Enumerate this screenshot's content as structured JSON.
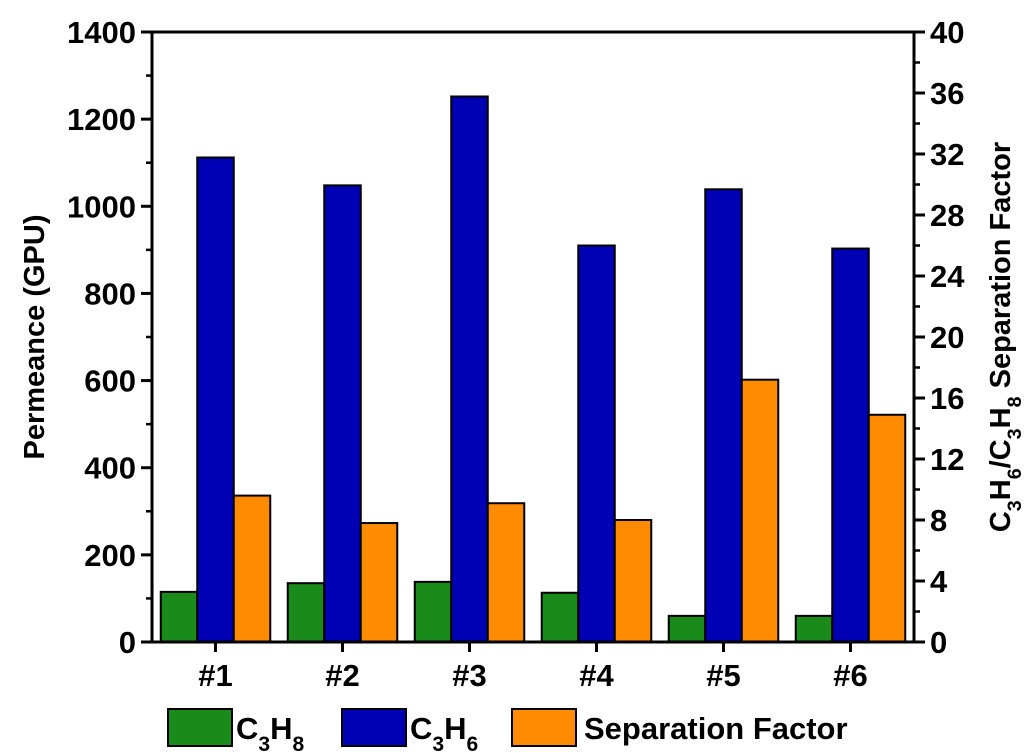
{
  "colors": {
    "c3h8": "#1a8a1a",
    "c3h6": "#0000b4",
    "separation_factor": "#ff8c00",
    "axis": "#000000"
  },
  "chart_data": {
    "type": "bar",
    "categories": [
      "#1",
      "#2",
      "#3",
      "#4",
      "#5",
      "#6"
    ],
    "left_axis": {
      "label": "Permeance (GPU)",
      "ylim": [
        0,
        1400
      ],
      "ticks": [
        "0",
        "200",
        "400",
        "600",
        "800",
        "1000",
        "1200",
        "1400"
      ]
    },
    "right_axis": {
      "label_parts": [
        {
          "t": "C",
          "sub": false
        },
        {
          "t": "3",
          "sub": true
        },
        {
          "t": "H",
          "sub": false
        },
        {
          "t": "6",
          "sub": true
        },
        {
          "t": "/C",
          "sub": false
        },
        {
          "t": "3",
          "sub": true
        },
        {
          "t": "H",
          "sub": false
        },
        {
          "t": "8",
          "sub": true
        },
        {
          "t": " Separation Factor",
          "sub": false
        }
      ],
      "ylim": [
        0,
        40
      ],
      "ticks": [
        "0",
        "4",
        "8",
        "12",
        "16",
        "20",
        "24",
        "28",
        "32",
        "36",
        "40"
      ]
    },
    "series": [
      {
        "key": "c3h8",
        "axis": "left",
        "legend_parts": [
          {
            "t": "C",
            "sub": false
          },
          {
            "t": "3",
            "sub": true
          },
          {
            "t": "H",
            "sub": false
          },
          {
            "t": "8",
            "sub": true
          }
        ],
        "values": [
          115,
          135,
          138,
          113,
          60,
          60
        ]
      },
      {
        "key": "c3h6",
        "axis": "left",
        "legend_parts": [
          {
            "t": "C",
            "sub": false
          },
          {
            "t": "3",
            "sub": true
          },
          {
            "t": "H",
            "sub": false
          },
          {
            "t": "6",
            "sub": true
          }
        ],
        "values": [
          1112,
          1048,
          1252,
          910,
          1039,
          903
        ]
      },
      {
        "key": "separation_factor",
        "axis": "right",
        "legend_parts": [
          {
            "t": "Separation Factor",
            "sub": false
          }
        ],
        "values": [
          9.6,
          7.8,
          9.1,
          8.0,
          17.2,
          14.9
        ]
      }
    ],
    "legend_position": "bottom"
  }
}
